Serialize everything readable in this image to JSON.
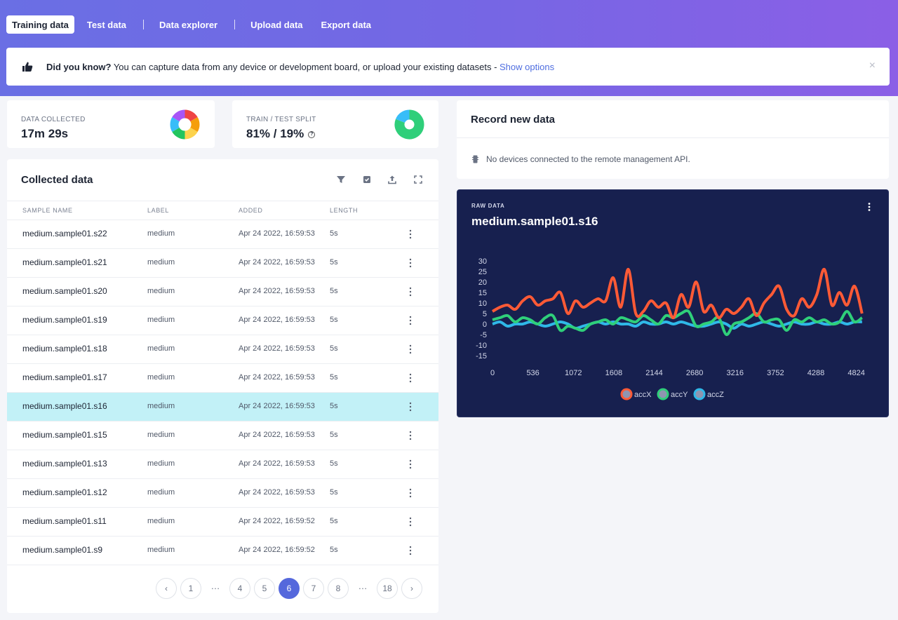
{
  "tabs": [
    {
      "label": "Training data",
      "active": true
    },
    {
      "label": "Test data",
      "active": false
    },
    {
      "label": "Data explorer",
      "active": false
    },
    {
      "label": "Upload data",
      "active": false
    },
    {
      "label": "Export data",
      "active": false
    }
  ],
  "tip": {
    "icon": "thumbs-up-icon",
    "bold": "Did you know?",
    "text": " You can capture data from any device or development board, or upload your existing datasets - ",
    "link": "Show options",
    "close": "×"
  },
  "stats": {
    "collected": {
      "label": "DATA COLLECTED",
      "value": "17m 29s",
      "colors": [
        "#ef4444",
        "#f59e0b",
        "#fcd34d",
        "#22c55e",
        "#38bdf8",
        "#a855f7"
      ]
    },
    "split": {
      "label": "TRAIN / TEST SPLIT",
      "value": "81% / 19%",
      "train_pct": 81,
      "test_pct": 19
    }
  },
  "collected": {
    "title": "Collected data",
    "tools": [
      "filter-icon",
      "select-icon",
      "upload-icon",
      "expand-icon"
    ],
    "columns": [
      "SAMPLE NAME",
      "LABEL",
      "ADDED",
      "LENGTH"
    ],
    "rows": [
      {
        "name": "medium.sample01.s22",
        "label": "medium",
        "added": "Apr 24 2022, 16:59:53",
        "length": "5s"
      },
      {
        "name": "medium.sample01.s21",
        "label": "medium",
        "added": "Apr 24 2022, 16:59:53",
        "length": "5s"
      },
      {
        "name": "medium.sample01.s20",
        "label": "medium",
        "added": "Apr 24 2022, 16:59:53",
        "length": "5s"
      },
      {
        "name": "medium.sample01.s19",
        "label": "medium",
        "added": "Apr 24 2022, 16:59:53",
        "length": "5s"
      },
      {
        "name": "medium.sample01.s18",
        "label": "medium",
        "added": "Apr 24 2022, 16:59:53",
        "length": "5s"
      },
      {
        "name": "medium.sample01.s17",
        "label": "medium",
        "added": "Apr 24 2022, 16:59:53",
        "length": "5s"
      },
      {
        "name": "medium.sample01.s16",
        "label": "medium",
        "added": "Apr 24 2022, 16:59:53",
        "length": "5s",
        "selected": true
      },
      {
        "name": "medium.sample01.s15",
        "label": "medium",
        "added": "Apr 24 2022, 16:59:53",
        "length": "5s"
      },
      {
        "name": "medium.sample01.s13",
        "label": "medium",
        "added": "Apr 24 2022, 16:59:53",
        "length": "5s"
      },
      {
        "name": "medium.sample01.s12",
        "label": "medium",
        "added": "Apr 24 2022, 16:59:53",
        "length": "5s"
      },
      {
        "name": "medium.sample01.s11",
        "label": "medium",
        "added": "Apr 24 2022, 16:59:52",
        "length": "5s"
      },
      {
        "name": "medium.sample01.s9",
        "label": "medium",
        "added": "Apr 24 2022, 16:59:52",
        "length": "5s"
      }
    ],
    "pagination": [
      "‹",
      "1",
      "…",
      "4",
      "5",
      "6",
      "7",
      "8",
      "…",
      "18",
      "›"
    ],
    "current_page": "6"
  },
  "record": {
    "title": "Record new data",
    "message": "No devices connected to the remote management API."
  },
  "raw": {
    "label": "RAW DATA",
    "title": "medium.sample01.s16"
  },
  "chart_data": {
    "type": "line",
    "x": [
      0,
      100,
      200,
      300,
      400,
      500,
      600,
      700,
      800,
      900,
      1000,
      1100,
      1200,
      1300,
      1400,
      1500,
      1600,
      1700,
      1800,
      1900,
      2000,
      2100,
      2200,
      2300,
      2400,
      2500,
      2600,
      2700,
      2800,
      2900,
      3000,
      3100,
      3200,
      3300,
      3400,
      3500,
      3600,
      3700,
      3800,
      3900,
      4000,
      4100,
      4200,
      4300,
      4400,
      4500,
      4600,
      4700,
      4800,
      4900
    ],
    "xticks": [
      0,
      536,
      1072,
      1608,
      2144,
      2680,
      3216,
      3752,
      4288,
      4824
    ],
    "yticks": [
      -15,
      -10,
      -5,
      0,
      5,
      10,
      15,
      20,
      25,
      30
    ],
    "ylim": [
      -15,
      30
    ],
    "xlim": [
      0,
      4930
    ],
    "series": [
      {
        "name": "accX",
        "color": "#ff5a36",
        "values": [
          6,
          8,
          9,
          7,
          11,
          13,
          9,
          11,
          12,
          15,
          5,
          11,
          8,
          10,
          12,
          11,
          22,
          8,
          26,
          5,
          6,
          11,
          8,
          10,
          3,
          14,
          8,
          20,
          6,
          9,
          3,
          7,
          5,
          8,
          12,
          4,
          10,
          14,
          18,
          7,
          4,
          12,
          8,
          14,
          26,
          9,
          15,
          9,
          18,
          5
        ]
      },
      {
        "name": "accY",
        "color": "#2fcf7a",
        "values": [
          2,
          3,
          4,
          1,
          3,
          2,
          0,
          3,
          4,
          -3,
          -1,
          -2,
          -3,
          0,
          1,
          2,
          0,
          3,
          2,
          1,
          4,
          2,
          0,
          4,
          3,
          5,
          6,
          -1,
          0,
          1,
          3,
          -5,
          0,
          1,
          3,
          5,
          1,
          2,
          2,
          -3,
          2,
          1,
          3,
          1,
          2,
          0,
          1,
          6,
          1,
          3
        ]
      },
      {
        "name": "accZ",
        "color": "#2fb8e8",
        "values": [
          0,
          1,
          -1,
          0,
          0,
          1,
          0,
          -1,
          0,
          1,
          0,
          -2,
          -1,
          0,
          1,
          0,
          1,
          0,
          0,
          -1,
          1,
          0,
          0,
          1,
          0,
          1,
          0,
          -1,
          -1,
          0,
          1,
          0,
          -2,
          0,
          -1,
          0,
          1,
          0,
          -1,
          0,
          1,
          0,
          0,
          1,
          0,
          0,
          1,
          0,
          1,
          1
        ]
      }
    ]
  }
}
